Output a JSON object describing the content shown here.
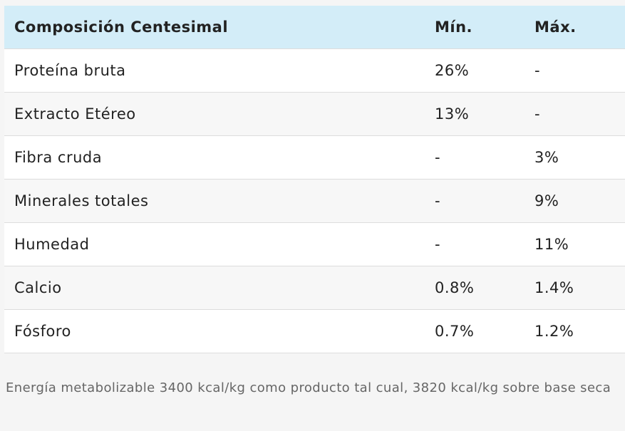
{
  "table": {
    "header": [
      "Composición Centesimal",
      "Mín.",
      "Máx."
    ],
    "rows": [
      [
        "Proteína bruta",
        "26%",
        "-"
      ],
      [
        "Extracto Etéreo",
        "13%",
        "-"
      ],
      [
        "Fibra cruda",
        "-",
        "3%"
      ],
      [
        "Minerales totales",
        "-",
        "9%"
      ],
      [
        "Humedad",
        "-",
        "11%"
      ],
      [
        "Calcio",
        "0.8%",
        "1.4%"
      ],
      [
        "Fósforo",
        "0.7%",
        "1.2%"
      ]
    ]
  },
  "note": "Energía metabolizable 3400 kcal/kg como producto tal cual, 3820 kcal/kg sobre base seca"
}
